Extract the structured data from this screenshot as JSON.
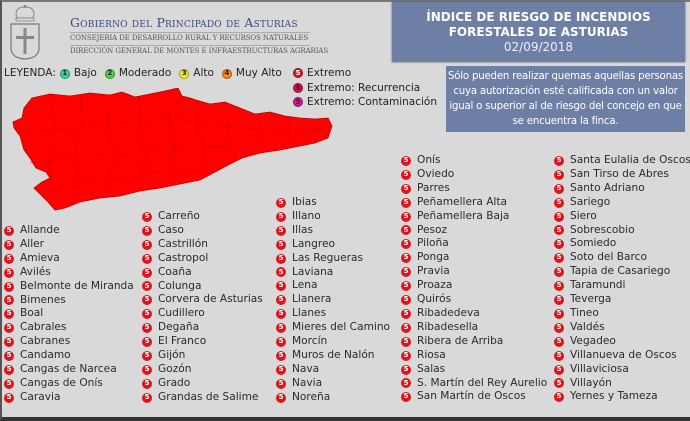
{
  "header": {
    "gov_title": "Gobierno del Principado de Asturias",
    "gov_sub1": "CONSEJERIA DE DESARROLLO RURAL Y RECURSOS NATURALES",
    "gov_sub2": "DIRECCIÓN GENERAL DE MONTES E INFRAESTRUCTURAS AGRARIAS",
    "crest_icon": "asturias-crest-icon"
  },
  "title_box": {
    "line1": "ÍNDICE DE RIESGO DE INCENDIOS",
    "line2": "FORESTALES DE ASTURIAS",
    "date": "02/09/2018",
    "background": "#6e7fa6"
  },
  "note": {
    "text": "Sólo pueden realizar quemas aquellas personas cuya autorización esté calificada con un valor igual o superior al de riesgo del concejo en que se encuentra la finca."
  },
  "legend": {
    "label": "LEYENDA:",
    "items": [
      {
        "num": "1",
        "label": "Bajo",
        "color": "#2fd6a8"
      },
      {
        "num": "2",
        "label": "Moderado",
        "color": "#44d844"
      },
      {
        "num": "3",
        "label": "Alto",
        "color": "#f0f020"
      },
      {
        "num": "4",
        "label": "Muy Alto",
        "color": "#f08a20"
      },
      {
        "num": "5",
        "label": "Extremo",
        "color": "#e0141c"
      },
      {
        "num": "5",
        "label": "Extremo: Recurrencia",
        "color": "#c8184a"
      },
      {
        "num": "5",
        "label": "Extremo: Contaminación",
        "color": "#d0208c"
      }
    ]
  },
  "map": {
    "region": "Asturias",
    "fill_color": "#ff0000",
    "risk_level": "5"
  },
  "municipalities": {
    "risk": "5",
    "col1": [
      "Allande",
      "Aller",
      "Amieva",
      "Avilés",
      "Belmonte de Miranda",
      "Bimenes",
      "Boal",
      "Cabrales",
      "Cabranes",
      "Candamo",
      "Cangas de Narcea",
      "Cangas de Onís",
      "Caravia"
    ],
    "col2": [
      "Carreño",
      "Caso",
      "Castrillón",
      "Castropol",
      "Coaña",
      "Colunga",
      "Corvera de Asturias",
      "Cudillero",
      "Degaña",
      "El Franco",
      "Gijón",
      "Gozón",
      "Grado",
      "Grandas de Salime"
    ],
    "col3": [
      "Ibias",
      "Illano",
      "Illas",
      "Langreo",
      "Las Regueras",
      "Laviana",
      "Lena",
      "Llanera",
      "Llanes",
      "Mieres del Camino",
      "Morcín",
      "Muros de Nalón",
      "Nava",
      "Navia",
      "Noreña"
    ],
    "col4": [
      "Onís",
      "Oviedo",
      "Parres",
      "Peñamellera Alta",
      "Peñamellera Baja",
      "Pesoz",
      "Piloña",
      "Ponga",
      "Pravia",
      "Proaza",
      "Quirós",
      "Ribadedeva",
      "Ribadesella",
      "Ribera de Arriba",
      "Riosa",
      "Salas",
      "S. Martín del Rey Aurelio",
      "San Martín de Oscos"
    ],
    "col5": [
      "Santa Eulalia de Oscos",
      "San Tirso de Abres",
      "Santo Adriano",
      "Sariego",
      "Siero",
      "Sobrescobio",
      "Somiedo",
      "Soto del Barco",
      "Tapia de Casariego",
      "Taramundi",
      "Teverga",
      "Tineo",
      "Valdés",
      "Vegadeo",
      "Villanueva de Oscos",
      "Villaviciosa",
      "Villayón",
      "Yernes y Tameza"
    ]
  }
}
